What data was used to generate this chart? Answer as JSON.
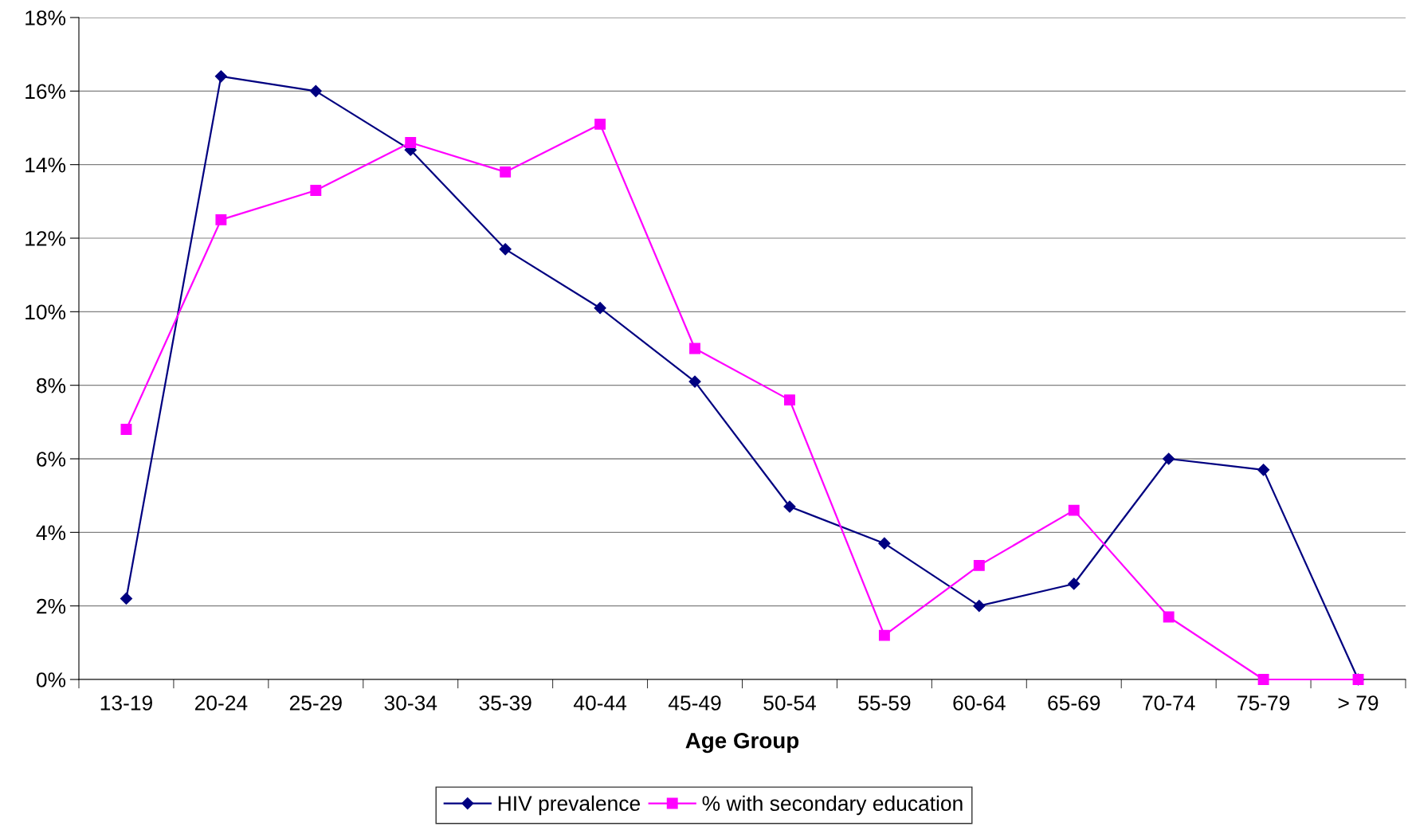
{
  "chart_data": {
    "type": "line",
    "xlabel": "Age Group",
    "categories": [
      "13-19",
      "20-24",
      "25-29",
      "30-34",
      "35-39",
      "40-44",
      "45-49",
      "50-54",
      "55-59",
      "60-64",
      "65-69",
      "70-74",
      "75-79",
      "> 79"
    ],
    "series": [
      {
        "name": "HIV prevalence",
        "color": "#000080",
        "marker": "diamond",
        "values": [
          2.2,
          16.4,
          16.0,
          14.4,
          11.7,
          10.1,
          8.1,
          4.7,
          3.7,
          2.0,
          2.6,
          6.0,
          5.7,
          0.0
        ]
      },
      {
        "name": "% with secondary education",
        "color": "#ff00ff",
        "marker": "square",
        "values": [
          6.8,
          12.5,
          13.3,
          14.6,
          13.8,
          15.1,
          9.0,
          7.6,
          1.2,
          3.1,
          4.6,
          1.7,
          0.0,
          0.0
        ]
      }
    ],
    "ylim": [
      0,
      18
    ],
    "yticks": [
      {
        "value": 0,
        "label": "0%"
      },
      {
        "value": 2,
        "label": "2%"
      },
      {
        "value": 4,
        "label": "4%"
      },
      {
        "value": 6,
        "label": "6%"
      },
      {
        "value": 8,
        "label": "8%"
      },
      {
        "value": 10,
        "label": "10%"
      },
      {
        "value": 12,
        "label": "12%"
      },
      {
        "value": 14,
        "label": "14%"
      },
      {
        "value": 16,
        "label": "16%"
      },
      {
        "value": 18,
        "label": "18%"
      }
    ],
    "grid": "y",
    "legend": "bottom",
    "line_style": "solid"
  }
}
